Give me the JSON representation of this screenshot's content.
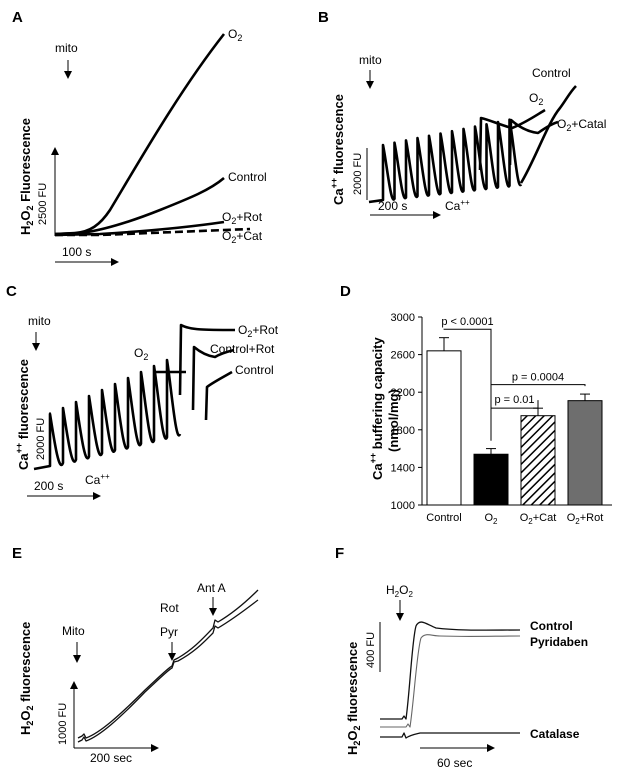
{
  "panels": {
    "A": {
      "letter": "A",
      "ylabel_pre": "H",
      "ylabel_sub1": "2",
      "ylabel_mid": "O",
      "ylabel_sub2": "2",
      "ylabel_post": " Fluorescence",
      "scale_y": "2500 FU",
      "scale_x": "100 s",
      "marker": "mito",
      "traces": [
        {
          "label_pre": "O",
          "label_sub": "2",
          "label_post": ""
        },
        {
          "label_pre": "Control",
          "label_sub": "",
          "label_post": ""
        },
        {
          "label_pre": "O",
          "label_sub": "2",
          "label_post": "+Rot"
        },
        {
          "label_pre": "O",
          "label_sub": "2",
          "label_post": "+Cat"
        }
      ]
    },
    "B": {
      "letter": "B",
      "ylabel_pre": "Ca",
      "ylabel_sup": "++",
      "ylabel_post": " fluorescence",
      "scale_y": "2000 FU",
      "scale_x": "200 s",
      "marker": "mito",
      "ca_pre": "Ca",
      "ca_sup": "++",
      "traces": [
        {
          "label_pre": "Control",
          "label_sub": "",
          "label_post": ""
        },
        {
          "label_pre": "O",
          "label_sub": "2",
          "label_post": ""
        },
        {
          "label_pre": "O",
          "label_sub": "2",
          "label_post": "+Catal"
        }
      ]
    },
    "C": {
      "letter": "C",
      "ylabel_pre": "Ca",
      "ylabel_sup": "++",
      "ylabel_post": " fluorescence",
      "scale_y": "2000 FU",
      "scale_x": "200 s",
      "marker": "mito",
      "ca_pre": "Ca",
      "ca_sup": "++",
      "o2_pre": "O",
      "o2_sub": "2",
      "traces": [
        {
          "label_pre": "O",
          "label_sub": "2",
          "label_post": "+Rot"
        },
        {
          "label_pre": "Control+Rot",
          "label_sub": "",
          "label_post": ""
        },
        {
          "label_pre": "Control",
          "label_sub": "",
          "label_post": ""
        }
      ]
    },
    "D": {
      "letter": "D"
    },
    "E": {
      "letter": "E",
      "ylabel_pre": "H",
      "ylabel_sub1": "2",
      "ylabel_mid": "O",
      "ylabel_sub2": "2",
      "ylabel_post": " fluorescence",
      "scale_y": "1000 FU",
      "scale_x": "200 sec",
      "markers": [
        "Mito",
        "Rot",
        "Pyr",
        "Ant A"
      ]
    },
    "F": {
      "letter": "F",
      "ylabel_pre": "H",
      "ylabel_sub1": "2",
      "ylabel_mid": "O",
      "ylabel_sub2": "2",
      "ylabel_post": " fluorescence",
      "scale_y": "400 FU",
      "scale_x": "60 sec",
      "marker_pre": "H",
      "marker_sub1": "2",
      "marker_mid": "O",
      "marker_sub2": "2",
      "traces": [
        "Control",
        "Pyridaben",
        "Catalase"
      ]
    }
  },
  "chart_data": {
    "type": "bar",
    "title": "",
    "ylabel_pre": "Ca",
    "ylabel_sup": "++",
    "ylabel_line1_post": " buffering capacity",
    "ylabel_line2": "(nmol/mg)",
    "ylim": [
      1000,
      3000
    ],
    "yticks": [
      "1000",
      "1400",
      "1800",
      "2200",
      "2600",
      "3000"
    ],
    "categories": [
      "Control",
      "O2",
      "O2+Cat",
      "O2+Rot"
    ],
    "category_labels": [
      {
        "pre": "Control",
        "sub": "",
        "post": ""
      },
      {
        "pre": "O",
        "sub": "2",
        "post": ""
      },
      {
        "pre": "O",
        "sub": "2",
        "post": "+Cat"
      },
      {
        "pre": "O",
        "sub": "2",
        "post": "+Rot"
      }
    ],
    "values": [
      2640,
      1540,
      1950,
      2110
    ],
    "errors": [
      140,
      60,
      80,
      70
    ],
    "fills": [
      "#ffffff",
      "#000000",
      "hatch",
      "#6e6e6e"
    ],
    "significance": [
      {
        "from": 0,
        "to": 1,
        "text": "p < 0.0001"
      },
      {
        "from": 1,
        "to": 3,
        "text": "p = 0.0004"
      },
      {
        "from": 1,
        "to": 2,
        "text": "p = 0.01"
      }
    ]
  }
}
